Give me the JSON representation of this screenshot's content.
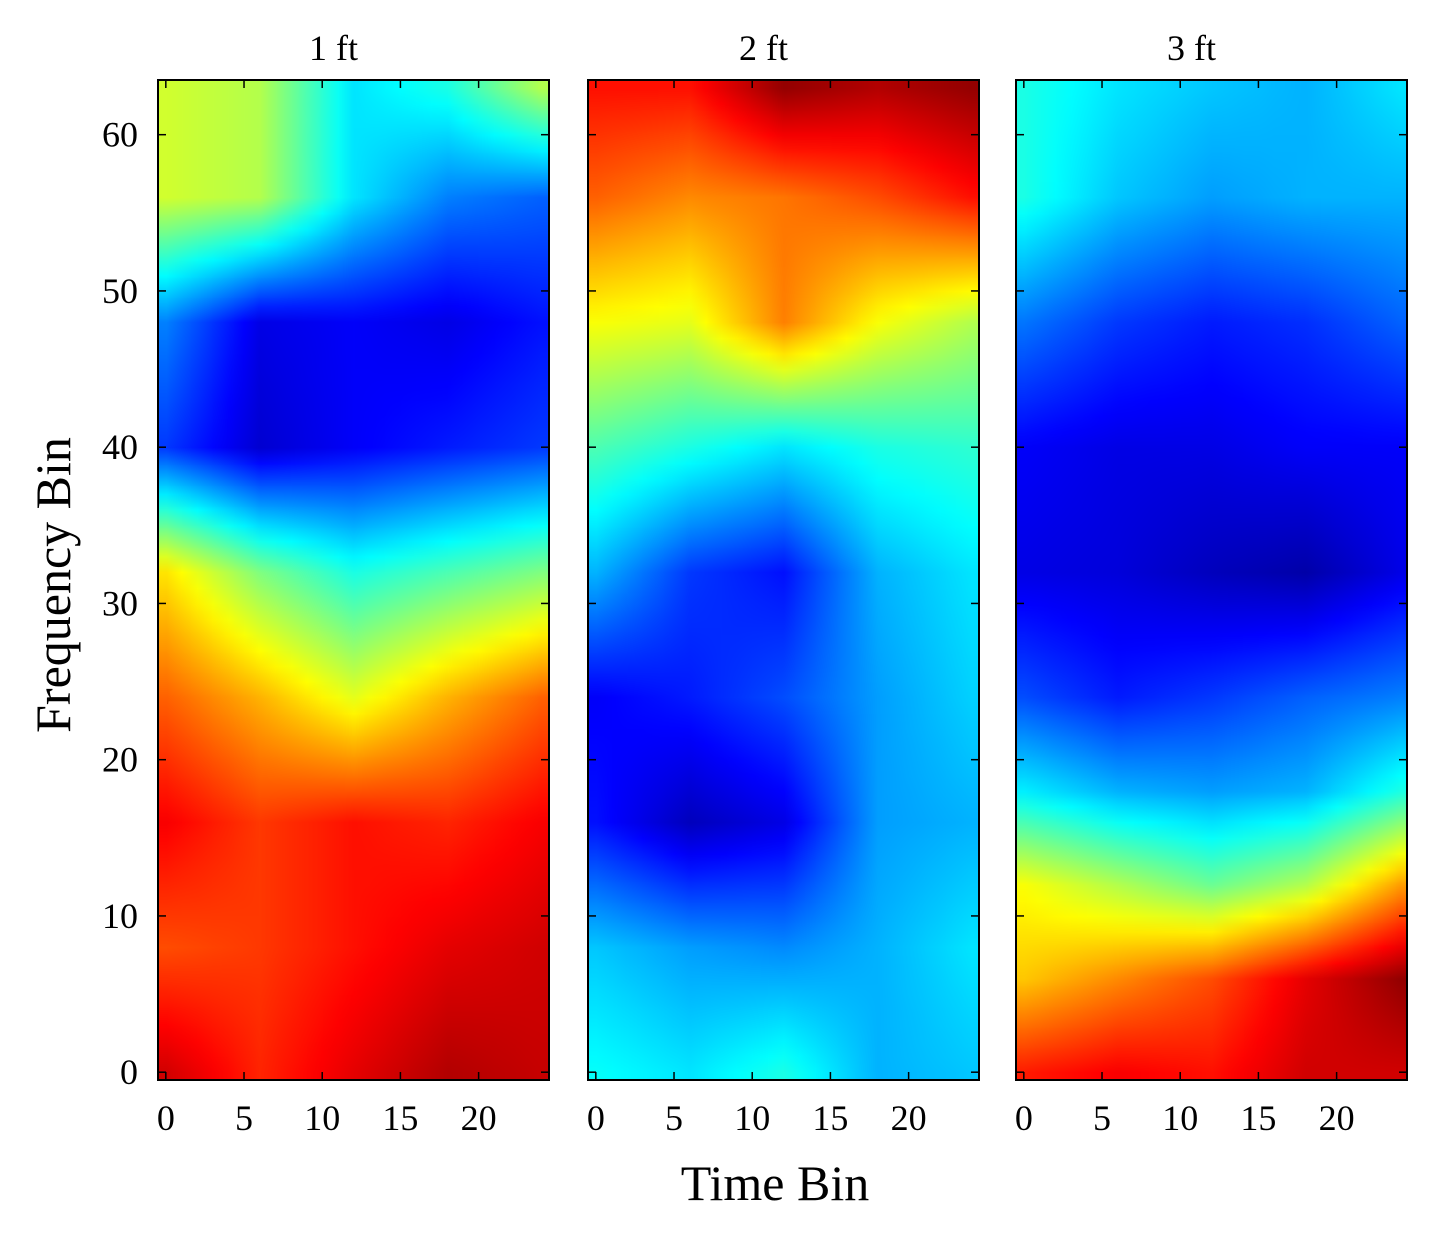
{
  "chart_data": {
    "type": "heatmap",
    "xlabel": "Time Bin",
    "ylabel": "Frequency Bin",
    "colormap": "jet",
    "grid": false,
    "legend": "none",
    "xlim": [
      -0.5,
      24.5
    ],
    "ylim": [
      -0.5,
      63.5
    ],
    "xticks": [
      0,
      5,
      10,
      15,
      20
    ],
    "yticks": [
      0,
      10,
      20,
      30,
      40,
      50,
      60
    ],
    "panels": [
      {
        "title": "1 ft",
        "grid_x": [
          0,
          6,
          12,
          18,
          24
        ],
        "grid_y": [
          0,
          8,
          16,
          24,
          32,
          40,
          48,
          56,
          63
        ],
        "values": [
          [
            0.92,
            0.84,
            0.9,
            0.95,
            0.93
          ],
          [
            0.8,
            0.82,
            0.86,
            0.9,
            0.92
          ],
          [
            0.88,
            0.82,
            0.86,
            0.84,
            0.88
          ],
          [
            0.78,
            0.7,
            0.6,
            0.7,
            0.78
          ],
          [
            0.65,
            0.5,
            0.4,
            0.45,
            0.5
          ],
          [
            0.18,
            0.08,
            0.12,
            0.15,
            0.18
          ],
          [
            0.25,
            0.1,
            0.12,
            0.1,
            0.14
          ],
          [
            0.58,
            0.55,
            0.35,
            0.25,
            0.22
          ],
          [
            0.58,
            0.55,
            0.35,
            0.4,
            0.55
          ]
        ]
      },
      {
        "title": "2 ft",
        "grid_x": [
          0,
          6,
          12,
          18,
          24
        ],
        "grid_y": [
          0,
          8,
          16,
          24,
          32,
          40,
          48,
          56,
          63
        ],
        "values": [
          [
            0.38,
            0.35,
            0.4,
            0.3,
            0.32
          ],
          [
            0.32,
            0.28,
            0.26,
            0.3,
            0.35
          ],
          [
            0.14,
            0.06,
            0.1,
            0.28,
            0.3
          ],
          [
            0.12,
            0.15,
            0.2,
            0.28,
            0.33
          ],
          [
            0.3,
            0.18,
            0.14,
            0.3,
            0.35
          ],
          [
            0.45,
            0.4,
            0.35,
            0.4,
            0.42
          ],
          [
            0.62,
            0.6,
            0.75,
            0.62,
            0.55
          ],
          [
            0.78,
            0.74,
            0.76,
            0.8,
            0.86
          ],
          [
            0.86,
            0.86,
            0.98,
            0.95,
            0.98
          ]
        ]
      },
      {
        "title": "3 ft",
        "grid_x": [
          0,
          6,
          12,
          18,
          24
        ],
        "grid_y": [
          0,
          6,
          12,
          18,
          24,
          32,
          40,
          48,
          56,
          63
        ],
        "values": [
          [
            0.85,
            0.88,
            0.86,
            0.92,
            0.92
          ],
          [
            0.68,
            0.74,
            0.8,
            0.9,
            0.98
          ],
          [
            0.62,
            0.55,
            0.48,
            0.55,
            0.72
          ],
          [
            0.36,
            0.3,
            0.28,
            0.3,
            0.4
          ],
          [
            0.2,
            0.15,
            0.18,
            0.22,
            0.25
          ],
          [
            0.1,
            0.09,
            0.06,
            0.04,
            0.1
          ],
          [
            0.12,
            0.1,
            0.1,
            0.12,
            0.12
          ],
          [
            0.24,
            0.18,
            0.15,
            0.17,
            0.22
          ],
          [
            0.4,
            0.32,
            0.28,
            0.3,
            0.3
          ],
          [
            0.4,
            0.35,
            0.32,
            0.3,
            0.35
          ]
        ]
      }
    ]
  }
}
